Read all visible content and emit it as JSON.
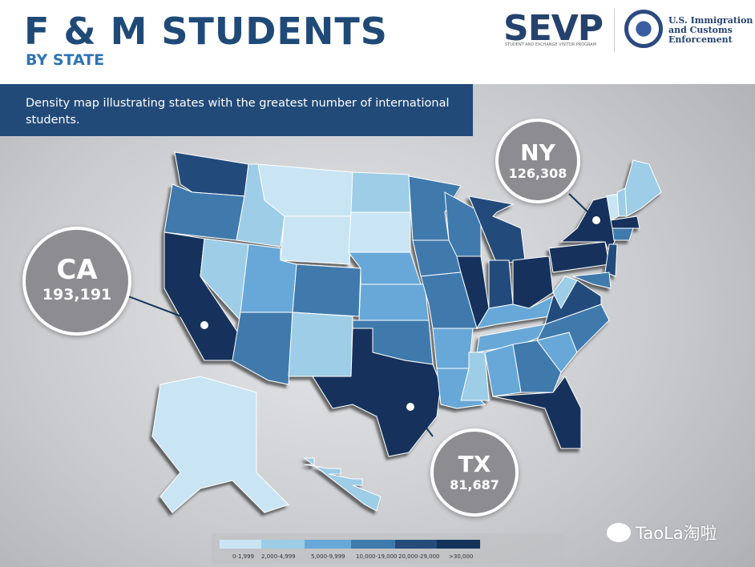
{
  "header": {
    "title": "F & M STUDENTS",
    "subtitle": "BY STATE",
    "logo_sevp": "SEVP",
    "logo_sevp_sub": "STUDENT AND EXCHANGE VISITOR PROGRAM",
    "logo_ice": "U.S. Immigration and Customs Enforcement"
  },
  "description": "Density map illustrating states with the greatest number of international students.",
  "colors": {
    "bin0": "#c9e5f3",
    "bin1": "#9dcde7",
    "bin2": "#68a8d8",
    "bin3": "#3f7aad",
    "bin4": "#244b7c",
    "bin5": "#14335b"
  },
  "callouts": {
    "ca": {
      "state": "CA",
      "value": "193,191"
    },
    "ny": {
      "state": "NY",
      "value": "126,308"
    },
    "tx": {
      "state": "TX",
      "value": "81,687"
    }
  },
  "legend": [
    {
      "label": "0-1,999",
      "bin": "bin0"
    },
    {
      "label": "2,000-4,999",
      "bin": "bin1"
    },
    {
      "label": "5,000-9,999",
      "bin": "bin2"
    },
    {
      "label": "10,000-19,000",
      "bin": "bin3"
    },
    {
      "label": "20,000-29,000",
      "bin": "bin4"
    },
    {
      "label": ">30,000",
      "bin": "bin5"
    }
  ],
  "states": {
    "WA": "bin4",
    "OR": "bin3",
    "CA": "bin5",
    "NV": "bin1",
    "ID": "bin1",
    "MT": "bin0",
    "WY": "bin0",
    "UT": "bin2",
    "AZ": "bin3",
    "CO": "bin3",
    "NM": "bin1",
    "ND": "bin1",
    "SD": "bin0",
    "NE": "bin2",
    "KS": "bin2",
    "OK": "bin3",
    "TX": "bin5",
    "MN": "bin3",
    "IA": "bin3",
    "MO": "bin3",
    "AR": "bin2",
    "LA": "bin2",
    "WI": "bin3",
    "IL": "bin5",
    "MI": "bin4",
    "IN": "bin4",
    "OH": "bin5",
    "KY": "bin2",
    "TN": "bin2",
    "MS": "bin1",
    "AL": "bin2",
    "GA": "bin3",
    "FL": "bin5",
    "SC": "bin2",
    "NC": "bin3",
    "VA": "bin4",
    "WV": "bin1",
    "PA": "bin5",
    "NY": "bin5",
    "NJ": "bin4",
    "MD": "bin3",
    "VT": "bin0",
    "NH": "bin1",
    "ME": "bin1",
    "MA": "bin5",
    "CT": "bin3",
    "AK": "bin0",
    "HI": "bin1"
  },
  "watermark": "TaoLa淘啦"
}
